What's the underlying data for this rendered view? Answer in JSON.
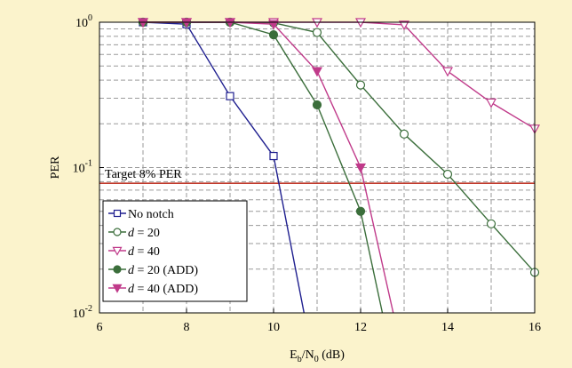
{
  "chart_data": {
    "type": "line",
    "x_axis": {
      "label_main": "E",
      "label_sub1": "b",
      "label_mid": "/N",
      "label_sub2": "0",
      "label_unit": " (dB)",
      "range": [
        6,
        16
      ],
      "ticks": [
        "6",
        "8",
        "10",
        "12",
        "14",
        "16"
      ]
    },
    "y_axis": {
      "label": "PER",
      "scale": "log",
      "range": [
        0.01,
        1
      ],
      "ticks": [
        {
          "value": 1,
          "base": "10",
          "exp": "0"
        },
        {
          "value": 0.1,
          "base": "10",
          "exp": "-1"
        },
        {
          "value": 0.01,
          "base": "10",
          "exp": "-2"
        }
      ]
    },
    "grid": true,
    "legend_position": "bottom-left",
    "target_line": {
      "value": 0.078,
      "label": "Target 8% PER",
      "color": "#c0392b"
    },
    "series": [
      {
        "name_prefix": "",
        "name_italic": "",
        "name_suffix": "No notch",
        "marker": "square-open",
        "color": "#1f1f8f",
        "points": [
          [
            7,
            1.0
          ],
          [
            8,
            0.97
          ],
          [
            9,
            0.31
          ],
          [
            10,
            0.12
          ],
          [
            10.7,
            0.01
          ]
        ]
      },
      {
        "name_prefix": "",
        "name_italic": "d",
        "name_suffix": " = 20",
        "marker": "circle-open",
        "color": "#3b6e3b",
        "points": [
          [
            7,
            1.0
          ],
          [
            8,
            1.0
          ],
          [
            9,
            1.0
          ],
          [
            10,
            0.99
          ],
          [
            11,
            0.85
          ],
          [
            12,
            0.37
          ],
          [
            13,
            0.17
          ],
          [
            14,
            0.09
          ],
          [
            15,
            0.041
          ],
          [
            16,
            0.019
          ]
        ]
      },
      {
        "name_prefix": "",
        "name_italic": "d",
        "name_suffix": " = 40",
        "marker": "triangle-down-open",
        "color": "#c03a8a",
        "points": [
          [
            7,
            1.0
          ],
          [
            8,
            1.0
          ],
          [
            9,
            1.0
          ],
          [
            10,
            1.0
          ],
          [
            11,
            1.0
          ],
          [
            12,
            1.0
          ],
          [
            13,
            0.96
          ],
          [
            14,
            0.46
          ],
          [
            15,
            0.28
          ],
          [
            16,
            0.185
          ]
        ]
      },
      {
        "name_prefix": "",
        "name_italic": "d",
        "name_suffix": " = 20 (ADD)",
        "marker": "circle-filled",
        "color": "#3b6e3b",
        "points": [
          [
            7,
            1.0
          ],
          [
            8,
            1.0
          ],
          [
            9,
            1.0
          ],
          [
            10,
            0.82
          ],
          [
            11,
            0.27
          ],
          [
            12,
            0.05
          ],
          [
            12.5,
            0.01
          ]
        ]
      },
      {
        "name_prefix": "",
        "name_italic": "d",
        "name_suffix": " = 40 (ADD)",
        "marker": "triangle-down-filled",
        "color": "#c03a8a",
        "points": [
          [
            7,
            1.0
          ],
          [
            8,
            1.0
          ],
          [
            9,
            1.0
          ],
          [
            10,
            0.97
          ],
          [
            11,
            0.46
          ],
          [
            12,
            0.1
          ],
          [
            12.75,
            0.01
          ]
        ]
      }
    ]
  }
}
